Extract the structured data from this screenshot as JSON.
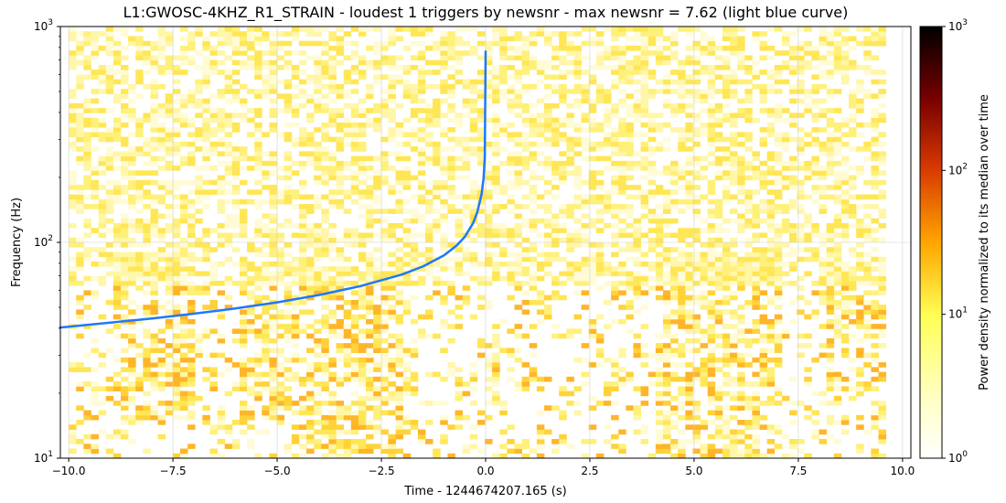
{
  "chart_data": {
    "type": "heatmap",
    "title": "L1:GWOSC-4KHZ_R1_STRAIN - loudest 1 triggers by newsnr - max newsnr = 7.62 (light blue curve)",
    "xlabel": "Time - 1244674207.165 (s)",
    "ylabel": "Frequency (Hz)",
    "xlim": [
      -10.2,
      10.2
    ],
    "ylim": [
      10,
      1000
    ],
    "yscale": "log",
    "x_ticks": [
      -10.0,
      -7.5,
      -5.0,
      -2.5,
      0.0,
      2.5,
      5.0,
      7.5,
      10.0
    ],
    "x_tick_labels": [
      "−10.0",
      "−7.5",
      "−5.0",
      "−2.5",
      "0.0",
      "2.5",
      "5.0",
      "7.5",
      "10.0"
    ],
    "y_ticks": [
      10,
      100,
      1000
    ],
    "grid": true,
    "heatmap_extent_x": [
      -10.0,
      9.6
    ],
    "colormap": "afmhot_r",
    "colorbar": {
      "label": "Power density normalized to its median over time",
      "scale": "log",
      "range": [
        1,
        1000
      ],
      "ticks": [
        1,
        10,
        100,
        1000
      ]
    },
    "series": [
      {
        "color": "#1f77ff",
        "x": [
          -10.2,
          -9.0,
          -8.0,
          -7.0,
          -6.0,
          -5.0,
          -4.0,
          -3.0,
          -2.0,
          -1.5,
          -1.0,
          -0.7,
          -0.5,
          -0.3,
          -0.2,
          -0.1,
          -0.05,
          -0.02,
          0.0
        ],
        "y": [
          40.3,
          42.5,
          44.4,
          46.7,
          49.4,
          52.7,
          57.0,
          62.7,
          71.0,
          77.4,
          87.0,
          96.5,
          106.0,
          122.8,
          138.0,
          166.0,
          197.0,
          247.0,
          766.0
        ]
      }
    ],
    "bright_regions": [
      {
        "x": [
          -9.0,
          -7.0
        ],
        "y": [
          15,
          90
        ]
      },
      {
        "x": [
          -6.0,
          -4.5
        ],
        "y": [
          15,
          80
        ]
      },
      {
        "x": [
          -4.5,
          -2.0
        ],
        "y": [
          10,
          70
        ]
      },
      {
        "x": [
          4.0,
          7.0
        ],
        "y": [
          10,
          90
        ]
      },
      {
        "x": [
          8.0,
          9.6
        ],
        "y": [
          20,
          80
        ]
      }
    ]
  }
}
